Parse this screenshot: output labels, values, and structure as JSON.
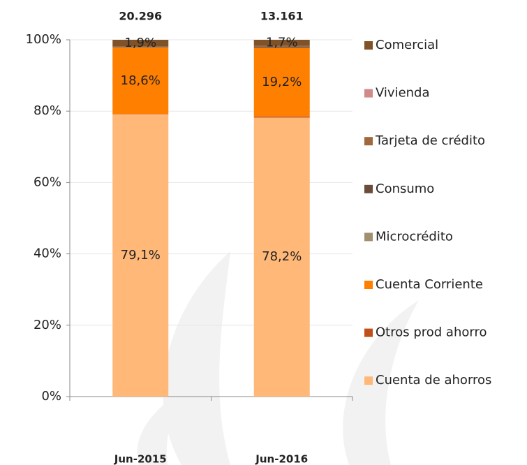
{
  "chart_data": {
    "type": "stacked_bar",
    "categories": [
      "Jun-2015",
      "Jun-2016"
    ],
    "totals": {
      "values": [
        20296,
        13161
      ],
      "value_labels": [
        "20.296",
        "13.161"
      ]
    },
    "series": [
      {
        "name": "Cuenta de ahorros",
        "color": "#ffb878",
        "values": [
          79.1,
          78.2
        ],
        "value_labels": [
          "79,1%",
          "78,2%"
        ]
      },
      {
        "name": "Otros prod ahorro",
        "color": "#c0501a",
        "values": [
          0.1,
          0.3
        ]
      },
      {
        "name": "Cuenta Corriente",
        "color": "#ff7f00",
        "values": [
          18.6,
          19.2
        ],
        "value_labels": [
          "18,6%",
          "19,2%"
        ]
      },
      {
        "name": "Microcrédito",
        "color": "#a09070",
        "values": [
          0.0,
          0.0
        ]
      },
      {
        "name": "Consumo",
        "color": "#6b4c3b",
        "values": [
          0.1,
          0.3
        ]
      },
      {
        "name": "Tarjeta de crédito",
        "color": "#a0683c",
        "values": [
          0.2,
          0.3
        ]
      },
      {
        "name": "Vivienda",
        "color": "#d08a8a",
        "values": [
          0.0,
          0.0
        ]
      },
      {
        "name": "Comercial",
        "color": "#7f5228",
        "values": [
          1.9,
          1.7
        ],
        "value_labels": [
          "1,9%",
          "1,7%"
        ]
      }
    ],
    "ylim": [
      0,
      100
    ],
    "yticks": [
      {
        "value": 0,
        "label": "0%"
      },
      {
        "value": 20,
        "label": "20%"
      },
      {
        "value": 40,
        "label": "40%"
      },
      {
        "value": 60,
        "label": "60%"
      },
      {
        "value": 80,
        "label": "80%"
      },
      {
        "value": 100,
        "label": "100%"
      }
    ],
    "grid": true,
    "legend": "right"
  }
}
